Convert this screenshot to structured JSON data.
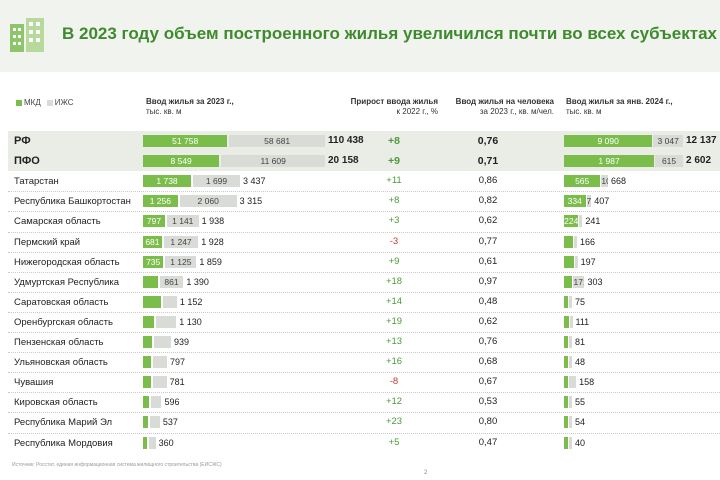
{
  "header": {
    "title": "В 2023 году объем построенного жилья увеличился почти во всех субъектах",
    "accent": "#3f8a2e",
    "background": "#f1f4ee",
    "icon": "building-icon"
  },
  "legend": {
    "mkd": "МКД",
    "izhs": "ИЖС",
    "mkd_color": "#7abd4b",
    "izhs_color": "#d9dbd7"
  },
  "columns": {
    "h1": "Ввод жилья за 2023 г.,",
    "h1_unit": "тыс. кв. м",
    "h2": "Прирост ввода жилья",
    "h2_unit": "к 2022 г., %",
    "h3": "Ввод жилья на человека",
    "h3_unit": "за 2023 г., кв. м/чел.",
    "h4": "Ввод жилья за янв. 2024 г.,",
    "h4_unit": "тыс. кв. м"
  },
  "chart_data": {
    "type": "table",
    "series": [
      {
        "name": "МКД"
      },
      {
        "name": "ИЖС"
      }
    ],
    "rows": [
      {
        "name": "РФ",
        "mkd": "51 758",
        "izhs": "58 681",
        "total": "110 438",
        "growth": "+8",
        "per_capita": "0,76",
        "jan_mkd": "9 090",
        "jan_izhs": "3 047",
        "jan_total": "12 137",
        "m": 51758,
        "i": 58681,
        "jm": 9090,
        "ji": 3047,
        "highlight": true
      },
      {
        "name": "ПФО",
        "mkd": "8 549",
        "izhs": "11 609",
        "total": "20 158",
        "growth": "+9",
        "per_capita": "0,71",
        "jan_mkd": "1 987",
        "jan_izhs": "615",
        "jan_total": "2 602",
        "m": 8549,
        "i": 11609,
        "jm": 1987,
        "ji": 615,
        "highlight": true
      },
      {
        "name": "Татарстан",
        "mkd": "1 738",
        "izhs": "1 699",
        "total": "3 437",
        "growth": "+11",
        "per_capita": "0,86",
        "jan_mkd": "565",
        "jan_izhs": "103",
        "jan_total": "668",
        "m": 1738,
        "i": 1699,
        "jm": 565,
        "ji": 103
      },
      {
        "name": "Республика Башкортостан",
        "mkd": "1 256",
        "izhs": "2 060",
        "total": "3 315",
        "growth": "+8",
        "per_capita": "0,82",
        "jan_mkd": "334",
        "jan_izhs": "73",
        "jan_total": "407",
        "m": 1256,
        "i": 2060,
        "jm": 334,
        "ji": 73
      },
      {
        "name": "Самарская область",
        "mkd": "797",
        "izhs": "1 141",
        "total": "1 938",
        "growth": "+3",
        "per_capita": "0,62",
        "jan_mkd": "224",
        "jan_izhs": "",
        "jan_total": "241",
        "m": 797,
        "i": 1141,
        "jm": 224,
        "ji": 17
      },
      {
        "name": "Пермский край",
        "mkd": "681",
        "izhs": "1 247",
        "total": "1 928",
        "growth": "-3",
        "per_capita": "0,77",
        "jan_mkd": "",
        "jan_izhs": "",
        "jan_total": "166",
        "m": 681,
        "i": 1247,
        "jm": 140,
        "ji": 26
      },
      {
        "name": "Нижегородская область",
        "mkd": "735",
        "izhs": "1 125",
        "total": "1 859",
        "growth": "+9",
        "per_capita": "0,61",
        "jan_mkd": "",
        "jan_izhs": "",
        "jan_total": "197",
        "m": 735,
        "i": 1125,
        "jm": 150,
        "ji": 47
      },
      {
        "name": "Удмуртская Республика",
        "mkd": "",
        "izhs": "861",
        "total": "1 390",
        "growth": "+18",
        "per_capita": "0,97",
        "jan_mkd": "",
        "jan_izhs": "171",
        "jan_total": "303",
        "m": 529,
        "i": 861,
        "jm": 132,
        "ji": 171
      },
      {
        "name": "Саратовская область",
        "mkd": "",
        "izhs": "",
        "total": "1 152",
        "growth": "+14",
        "per_capita": "0,48",
        "jan_mkd": "",
        "jan_izhs": "",
        "jan_total": "75",
        "m": 650,
        "i": 502,
        "jm": 55,
        "ji": 20
      },
      {
        "name": "Оренбургская область",
        "mkd": "",
        "izhs": "",
        "total": "1 130",
        "growth": "+19",
        "per_capita": "0,62",
        "jan_mkd": "",
        "jan_izhs": "",
        "jan_total": "111",
        "m": 380,
        "i": 750,
        "jm": 70,
        "ji": 41
      },
      {
        "name": "Пензенская область",
        "mkd": "",
        "izhs": "",
        "total": "939",
        "growth": "+13",
        "per_capita": "0,76",
        "jan_mkd": "",
        "jan_izhs": "",
        "jan_total": "81",
        "m": 330,
        "i": 609,
        "jm": 58,
        "ji": 23
      },
      {
        "name": "Ульяновская область",
        "mkd": "",
        "izhs": "",
        "total": "797",
        "growth": "+16",
        "per_capita": "0,68",
        "jan_mkd": "",
        "jan_izhs": "",
        "jan_total": "48",
        "m": 280,
        "i": 517,
        "jm": 28,
        "ji": 20
      },
      {
        "name": "Чувашия",
        "mkd": "",
        "izhs": "",
        "total": "781",
        "growth": "-8",
        "per_capita": "0,67",
        "jan_mkd": "",
        "jan_izhs": "",
        "jan_total": "158",
        "m": 300,
        "i": 481,
        "jm": 48,
        "ji": 110
      },
      {
        "name": "Кировская область",
        "mkd": "",
        "izhs": "",
        "total": "596",
        "growth": "+12",
        "per_capita": "0,53",
        "jan_mkd": "",
        "jan_izhs": "",
        "jan_total": "55",
        "m": 210,
        "i": 386,
        "jm": 32,
        "ji": 23
      },
      {
        "name": "Республика Марий Эл",
        "mkd": "",
        "izhs": "",
        "total": "537",
        "growth": "+23",
        "per_capita": "0,80",
        "jan_mkd": "",
        "jan_izhs": "",
        "jan_total": "54",
        "m": 190,
        "i": 347,
        "jm": 33,
        "ji": 21
      },
      {
        "name": "Республика Мордовия",
        "mkd": "",
        "izhs": "",
        "total": "360",
        "growth": "+5",
        "per_capita": "0,47",
        "jan_mkd": "",
        "jan_izhs": "",
        "jan_total": "40",
        "m": 120,
        "i": 240,
        "jm": 25,
        "ji": 15
      }
    ]
  },
  "footer": {
    "source": "Источник: Росстат, единая информационная система жилищного строительства (ЕИСЖС)",
    "page": "2"
  }
}
